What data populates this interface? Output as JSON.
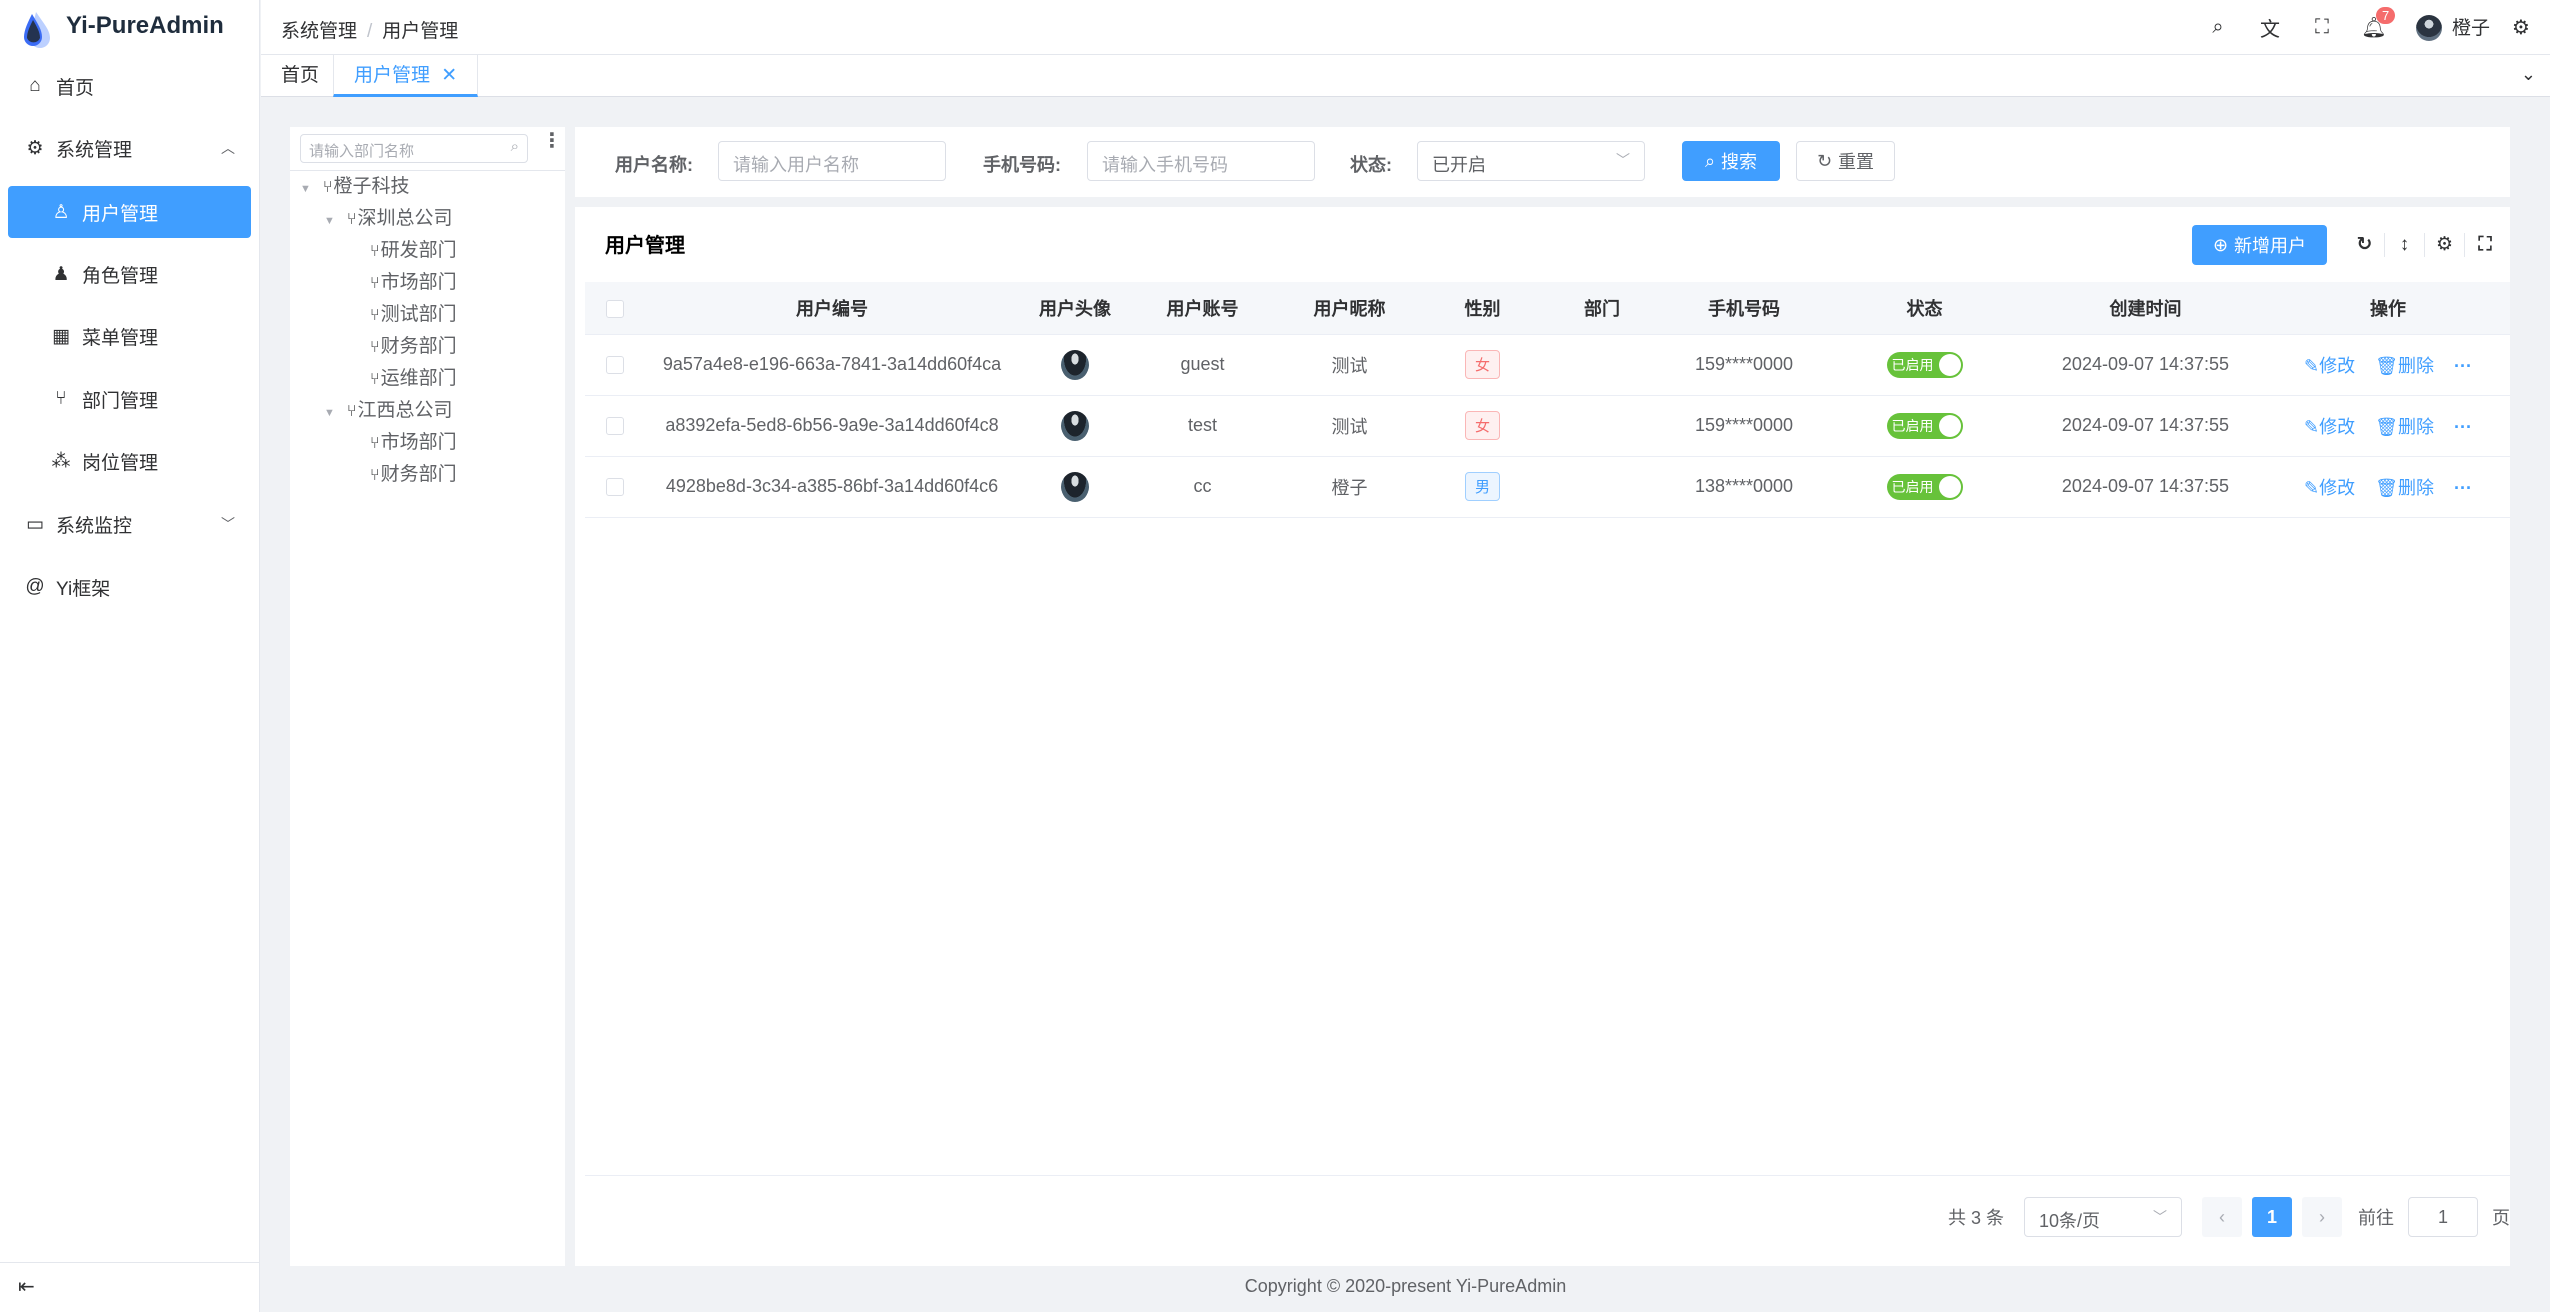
{
  "app": {
    "title": "Yi-PureAdmin"
  },
  "sidebar": {
    "items": [
      {
        "label": "首页",
        "icon": "home-icon"
      },
      {
        "label": "系统管理",
        "icon": "gear-icon"
      },
      {
        "label": "用户管理",
        "icon": "user-icon"
      },
      {
        "label": "角色管理",
        "icon": "role-icon"
      },
      {
        "label": "菜单管理",
        "icon": "grid-icon"
      },
      {
        "label": "部门管理",
        "icon": "branch-icon"
      },
      {
        "label": "岗位管理",
        "icon": "org-icon"
      },
      {
        "label": "系统监控",
        "icon": "monitor-icon"
      },
      {
        "label": "Yi框架",
        "icon": "at-icon"
      }
    ]
  },
  "header": {
    "breadcrumb": [
      "系统管理",
      "用户管理"
    ],
    "separator": "/",
    "notification_count": "7",
    "username": "橙子"
  },
  "tabs": [
    {
      "label": "首页"
    },
    {
      "label": "用户管理"
    }
  ],
  "tree": {
    "placeholder": "请输入部门名称",
    "nodes": [
      {
        "label": "橙子科技"
      },
      {
        "label": "深圳总公司"
      },
      {
        "label": "研发部门"
      },
      {
        "label": "市场部门"
      },
      {
        "label": "测试部门"
      },
      {
        "label": "财务部门"
      },
      {
        "label": "运维部门"
      },
      {
        "label": "江西总公司"
      },
      {
        "label": "市场部门"
      },
      {
        "label": "财务部门"
      }
    ]
  },
  "search": {
    "username_label": "用户名称:",
    "username_placeholder": "请输入用户名称",
    "phone_label": "手机号码:",
    "phone_placeholder": "请输入手机号码",
    "status_label": "状态:",
    "status_value": "已开启",
    "search_button": "搜索",
    "reset_button": "重置"
  },
  "table": {
    "title": "用户管理",
    "add_button": "新增用户",
    "columns": [
      "用户编号",
      "用户头像",
      "用户账号",
      "用户昵称",
      "性别",
      "部门",
      "手机号码",
      "状态",
      "创建时间",
      "操作"
    ],
    "rows": [
      {
        "id": "9a57a4e8-e196-663a-7841-3a14dd60f4ca",
        "account": "guest",
        "nickname": "测试",
        "gender": "女",
        "dept": "",
        "phone": "159****0000",
        "status": "已启用",
        "created": "2024-09-07 14:37:55"
      },
      {
        "id": "a8392efa-5ed8-6b56-9a9e-3a14dd60f4c8",
        "account": "test",
        "nickname": "测试",
        "gender": "女",
        "dept": "",
        "phone": "159****0000",
        "status": "已启用",
        "created": "2024-09-07 14:37:55"
      },
      {
        "id": "4928be8d-3c34-a385-86bf-3a14dd60f4c6",
        "account": "cc",
        "nickname": "橙子",
        "gender": "男",
        "dept": "",
        "phone": "138****0000",
        "status": "已启用",
        "created": "2024-09-07 14:37:55"
      }
    ],
    "edit_label": "修改",
    "delete_label": "删除",
    "more_label": "···"
  },
  "pagination": {
    "total": "共 3 条",
    "page_size": "10条/页",
    "current": "1",
    "goto_label": "前往",
    "goto_value": "1",
    "page_suffix": "页"
  },
  "footer": {
    "copyright": "Copyright © 2020-present Yi-PureAdmin"
  },
  "colors": {
    "primary": "#409eff",
    "success": "#67c23a",
    "danger": "#f56c6c"
  }
}
